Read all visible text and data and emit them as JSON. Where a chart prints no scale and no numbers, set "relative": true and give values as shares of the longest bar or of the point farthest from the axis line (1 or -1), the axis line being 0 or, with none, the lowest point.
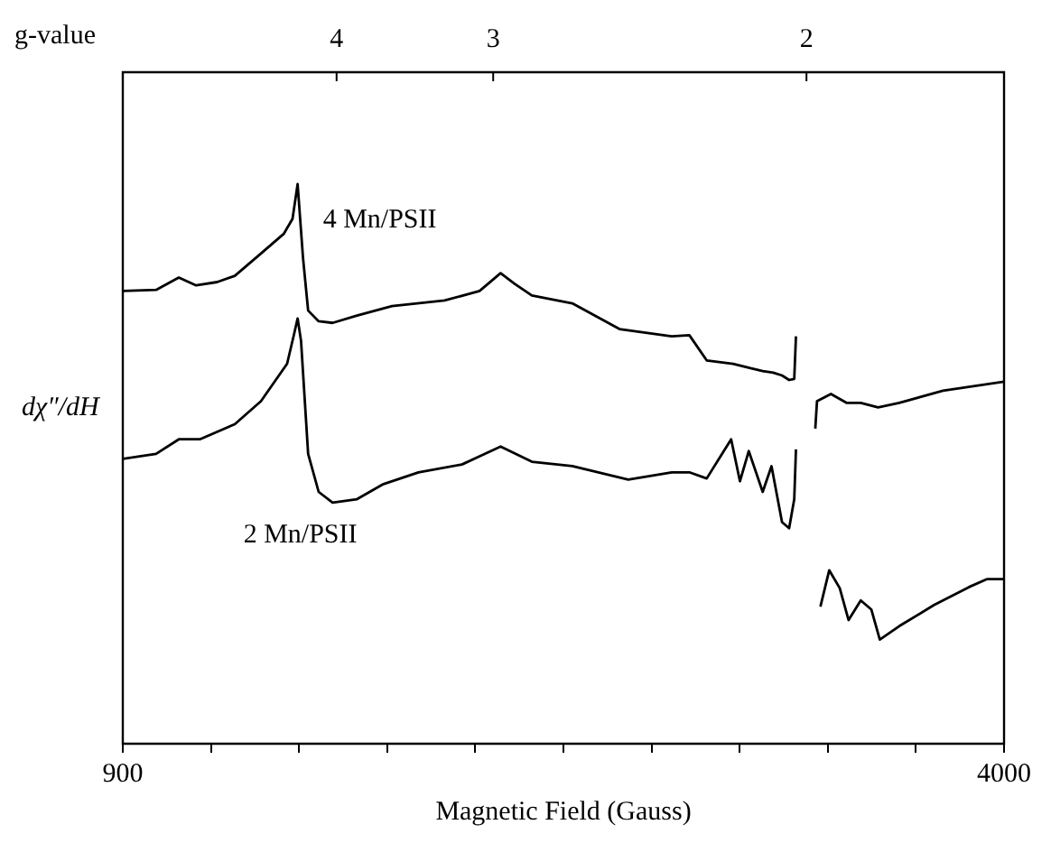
{
  "chart_data": {
    "type": "line",
    "xlabel": "Magnetic Field (Gauss)",
    "ylabel": "dχ″/dH",
    "annotations": [
      "g-value",
      "4",
      "3",
      "2"
    ],
    "relative": true,
    "legend": false,
    "grid": false,
    "marker": "none",
    "line_style": "solid",
    "xlim": [
      900,
      4000
    ],
    "xticks": [
      900,
      {
        "value": 1210,
        "label": null
      },
      {
        "value": 1520,
        "label": null
      },
      {
        "value": 1830,
        "label": null
      },
      {
        "value": 2140,
        "label": null
      },
      {
        "value": 2450,
        "label": null
      },
      {
        "value": 2760,
        "label": null
      },
      {
        "value": 3070,
        "label": null
      },
      {
        "value": 3380,
        "label": null
      },
      {
        "value": 3690,
        "label": null
      },
      4000
    ],
    "series": [
      {
        "name": "4 Mn/PSII",
        "color": "#000000",
        "x": [
          900,
          1017,
          1097,
          1158,
          1232,
          1294,
          1386,
          1466,
          1497,
          1515,
          1534,
          1552,
          1589,
          1638,
          1724,
          1847,
          2032,
          2155,
          2229,
          2278,
          2339,
          2481,
          2647,
          2831,
          2893,
          2954,
          3047,
          3108,
          3151,
          3188,
          3219,
          3244,
          3262,
          3268,
          3299,
          3336,
          3342,
          3391,
          3447,
          3496,
          3557,
          3631,
          3785,
          4000
        ],
        "values": [
          0.809,
          0.811,
          0.833,
          0.819,
          0.825,
          0.836,
          0.876,
          0.911,
          0.938,
          1.0,
          0.868,
          0.774,
          0.755,
          0.752,
          0.765,
          0.782,
          0.792,
          0.809,
          0.841,
          0.822,
          0.801,
          0.787,
          0.741,
          0.728,
          0.73,
          0.685,
          0.679,
          0.671,
          0.666,
          0.663,
          0.658,
          0.65,
          0.652,
          0.728,
          null,
          0.563,
          0.612,
          0.625,
          0.609,
          0.609,
          0.601,
          0.609,
          0.631,
          0.647
        ]
      },
      {
        "name": "2 Mn/PSII",
        "color": "#000000",
        "x": [
          900,
          1017,
          1097,
          1171,
          1294,
          1386,
          1478,
          1503,
          1515,
          1527,
          1552,
          1589,
          1638,
          1724,
          1817,
          1940,
          2093,
          2229,
          2339,
          2481,
          2678,
          2831,
          2893,
          2954,
          3040,
          3071,
          3102,
          3151,
          3182,
          3219,
          3244,
          3262,
          3268,
          3299,
          3354,
          3385,
          3422,
          3453,
          3496,
          3533,
          3563,
          3631,
          3754,
          3877,
          3939,
          4000
        ],
        "values": [
          0.509,
          0.518,
          0.544,
          0.544,
          0.571,
          0.612,
          0.679,
          0.733,
          0.76,
          0.72,
          0.518,
          0.45,
          0.431,
          0.437,
          0.464,
          0.485,
          0.499,
          0.531,
          0.504,
          0.496,
          0.472,
          0.485,
          0.485,
          0.474,
          0.544,
          0.469,
          0.523,
          0.45,
          0.496,
          0.396,
          0.385,
          0.437,
          0.526,
          null,
          0.245,
          0.31,
          0.278,
          0.221,
          0.256,
          0.24,
          0.186,
          0.21,
          0.248,
          0.28,
          0.294,
          0.294
        ]
      }
    ]
  }
}
